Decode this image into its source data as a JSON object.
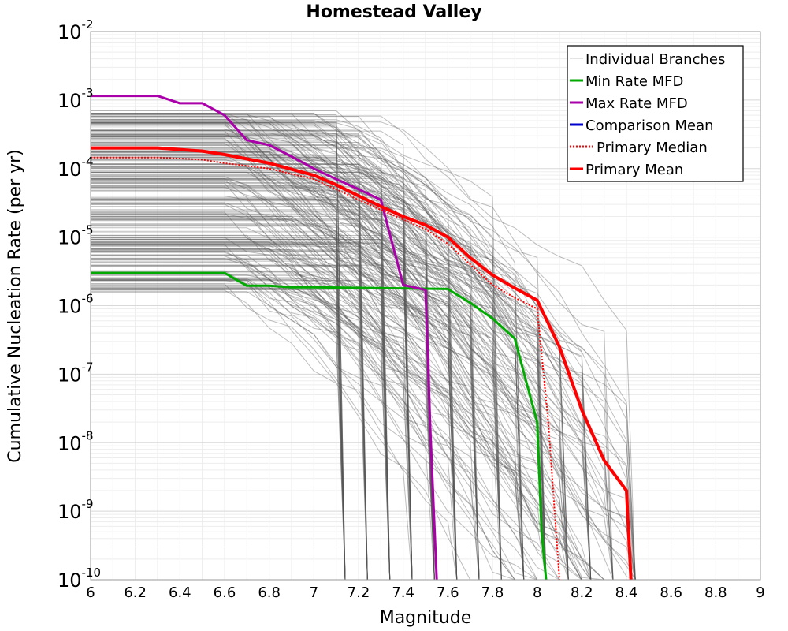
{
  "chart_data": {
    "type": "line",
    "title": "Homestead Valley",
    "xlabel": "Magnitude",
    "ylabel": "Cumulative Nucleation Rate (per yr)",
    "xlim": [
      6,
      9
    ],
    "ylim": [
      1e-10,
      0.01
    ],
    "yscale": "log",
    "grid": true,
    "legend_position": "top-right",
    "x_ticks": [
      "6",
      "6.2",
      "6.4",
      "6.6",
      "6.8",
      "7",
      "7.2",
      "7.4",
      "7.6",
      "7.8",
      "8",
      "8.2",
      "8.4",
      "8.6",
      "8.8",
      "9"
    ],
    "y_ticks": [
      {
        "base": "10",
        "exp": "-2"
      },
      {
        "base": "10",
        "exp": "-3"
      },
      {
        "base": "10",
        "exp": "-4"
      },
      {
        "base": "10",
        "exp": "-5"
      },
      {
        "base": "10",
        "exp": "-6"
      },
      {
        "base": "10",
        "exp": "-7"
      },
      {
        "base": "10",
        "exp": "-8"
      },
      {
        "base": "10",
        "exp": "-9"
      },
      {
        "base": "10",
        "exp": "-10"
      }
    ],
    "series": [
      {
        "name": "Min Rate MFD",
        "color": "#00aa00",
        "style": "solid",
        "width": 3,
        "points": [
          [
            6.0,
            3e-06
          ],
          [
            6.6,
            3e-06
          ],
          [
            6.7,
            1.95e-06
          ],
          [
            6.8,
            1.95e-06
          ],
          [
            6.9,
            1.85e-06
          ],
          [
            7.0,
            1.85e-06
          ],
          [
            7.6,
            1.75e-06
          ],
          [
            7.7,
            1.1e-06
          ],
          [
            7.8,
            6.5e-07
          ],
          [
            7.9,
            3.3e-07
          ],
          [
            7.95,
            8e-08
          ],
          [
            8.0,
            2e-08
          ],
          [
            8.02,
            5e-10
          ],
          [
            8.04,
            1e-10
          ]
        ]
      },
      {
        "name": "Max Rate MFD",
        "color": "#aa00aa",
        "style": "solid",
        "width": 3,
        "points": [
          [
            6.0,
            0.00115
          ],
          [
            6.3,
            0.00115
          ],
          [
            6.4,
            0.0009
          ],
          [
            6.5,
            0.0009
          ],
          [
            6.6,
            0.0006
          ],
          [
            6.7,
            0.00026
          ],
          [
            6.8,
            0.00022
          ],
          [
            6.9,
            0.00015
          ],
          [
            7.0,
            0.0001
          ],
          [
            7.1,
            7e-05
          ],
          [
            7.2,
            5e-05
          ],
          [
            7.3,
            3.5e-05
          ],
          [
            7.4,
            2e-06
          ],
          [
            7.5,
            1.7e-06
          ],
          [
            7.52,
            2e-08
          ],
          [
            7.55,
            1e-10
          ]
        ]
      },
      {
        "name": "Primary Median",
        "color": "#ff0000",
        "style": "dotted",
        "width": 2,
        "points": [
          [
            6.0,
            0.000145
          ],
          [
            6.3,
            0.000145
          ],
          [
            6.5,
            0.000135
          ],
          [
            6.6,
            0.00012
          ],
          [
            6.8,
            0.0001
          ],
          [
            7.0,
            7e-05
          ],
          [
            7.1,
            5e-05
          ],
          [
            7.2,
            3.5e-05
          ],
          [
            7.3,
            2.5e-05
          ],
          [
            7.4,
            1.8e-05
          ],
          [
            7.5,
            1.3e-05
          ],
          [
            7.6,
            8e-06
          ],
          [
            7.7,
            4e-06
          ],
          [
            7.8,
            2e-06
          ],
          [
            7.9,
            1.3e-06
          ],
          [
            8.0,
            9e-07
          ],
          [
            8.05,
            2e-08
          ],
          [
            8.1,
            1e-10
          ]
        ]
      },
      {
        "name": "Primary Mean",
        "color": "#ff0000",
        "style": "solid",
        "width": 4,
        "points": [
          [
            6.0,
            0.0002
          ],
          [
            6.3,
            0.0002
          ],
          [
            6.5,
            0.00018
          ],
          [
            6.6,
            0.00016
          ],
          [
            6.8,
            0.00012
          ],
          [
            7.0,
            8e-05
          ],
          [
            7.1,
            5.8e-05
          ],
          [
            7.2,
            4e-05
          ],
          [
            7.3,
            2.8e-05
          ],
          [
            7.4,
            2e-05
          ],
          [
            7.5,
            1.5e-05
          ],
          [
            7.6,
            1e-05
          ],
          [
            7.7,
            5e-06
          ],
          [
            7.8,
            2.8e-06
          ],
          [
            7.9,
            1.8e-06
          ],
          [
            8.0,
            1.2e-06
          ],
          [
            8.1,
            2.5e-07
          ],
          [
            8.2,
            3e-08
          ],
          [
            8.3,
            5.5e-09
          ],
          [
            8.4,
            2e-09
          ],
          [
            8.42,
            1e-10
          ]
        ]
      }
    ],
    "legend": [
      {
        "label": "Individual Branches",
        "color": "#c8c8c8",
        "style": "solid"
      },
      {
        "label": "Min Rate MFD",
        "color": "#00aa00",
        "style": "solid"
      },
      {
        "label": "Max Rate MFD",
        "color": "#aa00aa",
        "style": "solid"
      },
      {
        "label": "Comparison Mean",
        "color": "#0000cc",
        "style": "solid"
      },
      {
        "label": "Primary Median",
        "color": "#ff0000",
        "style": "dotted"
      },
      {
        "label": "Primary Mean",
        "color": "#ff0000",
        "style": "solid"
      }
    ],
    "branch_color": "#555555"
  }
}
